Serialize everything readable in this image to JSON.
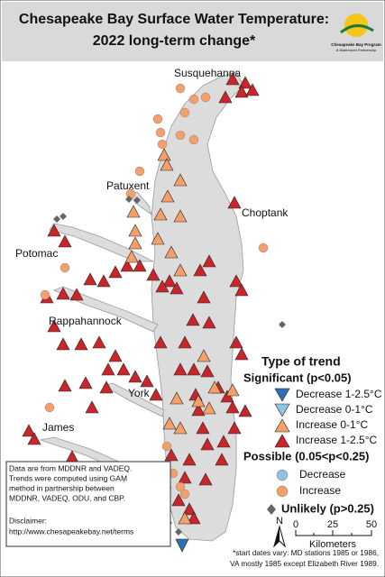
{
  "title": [
    "Chesapeake Bay Surface Water Temperature:",
    "2022 long-term change*"
  ],
  "logo": {
    "name": "Chesapeake Bay Program",
    "tagline": "A Watershed Partnership"
  },
  "rivers": [
    "Susquehanna",
    "Patuxent",
    "Choptank",
    "Potomac",
    "Rappahannock",
    "York",
    "James"
  ],
  "legend": {
    "title": "Type of trend",
    "significant": {
      "heading": "Significant (p<0.05)",
      "items": [
        "Decrease 1-2.5°C",
        "Decrease 0-1°C",
        "Increase 0-1°C",
        "Increase 1-2.5°C"
      ]
    },
    "possible": {
      "heading": "Possible (0.05<p<0.25)",
      "items": [
        "Decrease",
        "Increase"
      ]
    },
    "unlikely": "Unlikely (p>0.25)"
  },
  "scale": {
    "north": "N",
    "ticks": [
      "0",
      "25",
      "50"
    ],
    "unit": "Kilometers"
  },
  "data_note": [
    "Data are from MDDNR and VADEQ.",
    "Trends were computed using GAM",
    "method in partnership between",
    "MDDNR, VADEQ, ODU, and CBP.",
    "",
    "Disclaimer:",
    "http://www.chesapeakebay.net/terms"
  ],
  "footnote": [
    "*start dates vary: MD stations 1985 or 1986,",
    "VA mostly 1985 except Elizabeth River 1989."
  ]
}
